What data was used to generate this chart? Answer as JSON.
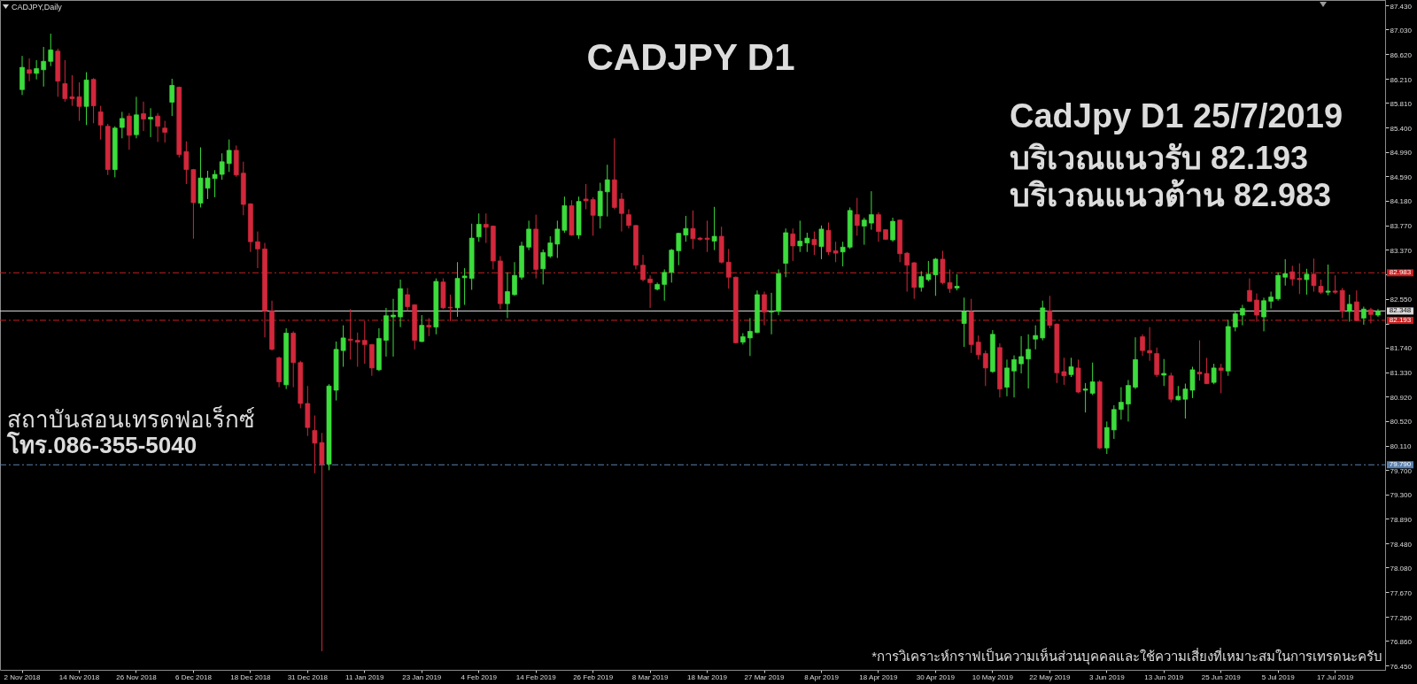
{
  "chart_data": {
    "type": "candlestick",
    "title": "CADJPY D1",
    "annotations": [
      "CADJPY,Daily",
      "CadJpy D1 25/7/2019",
      "บริเวณแนวรับ 82.193",
      "บริเวณแนวต้าน 82.983",
      "สถาบันสอนเทรดฟอเร็กซ์",
      "โทร.086-355-5040",
      "*การวิเคราะห์กราฟเป็นความเห็นส่วนบุคคลและใช้ความเสี่ยงที่เหมาะสมในการเทรดนะครับ"
    ],
    "categories": [
      "2 Nov 2018",
      null,
      null,
      null,
      null,
      null,
      null,
      null,
      "14 Nov 2018",
      null,
      null,
      null,
      null,
      null,
      null,
      null,
      "26 Nov 2018",
      null,
      null,
      null,
      null,
      null,
      null,
      null,
      "6 Dec 2018",
      null,
      null,
      null,
      null,
      null,
      null,
      null,
      "18 Dec 2018",
      null,
      null,
      null,
      null,
      null,
      null,
      null,
      "31 Dec 2018",
      null,
      null,
      null,
      null,
      null,
      null,
      null,
      "11 Jan 2019",
      null,
      null,
      null,
      null,
      null,
      null,
      null,
      "23 Jan 2019",
      null,
      null,
      null,
      null,
      null,
      null,
      null,
      "4 Feb 2019",
      null,
      null,
      null,
      null,
      null,
      null,
      null,
      "14 Feb 2019",
      null,
      null,
      null,
      null,
      null,
      null,
      null,
      "26 Feb 2019",
      null,
      null,
      null,
      null,
      null,
      null,
      null,
      "8 Mar 2019",
      null,
      null,
      null,
      null,
      null,
      null,
      null,
      "18 Mar 2019",
      null,
      null,
      null,
      null,
      null,
      null,
      null,
      "27 Mar 2019",
      null,
      null,
      null,
      null,
      null,
      null,
      null,
      "8 Apr 2019",
      null,
      null,
      null,
      null,
      null,
      null,
      null,
      "18 Apr 2019",
      null,
      null,
      null,
      null,
      null,
      null,
      null,
      "30 Apr 2019",
      null,
      null,
      null,
      null,
      null,
      null,
      null,
      "10 May 2019",
      null,
      null,
      null,
      null,
      null,
      null,
      null,
      "22 May 2019",
      null,
      null,
      null,
      null,
      null,
      null,
      null,
      "3 Jun 2019",
      null,
      null,
      null,
      null,
      null,
      null,
      null,
      "13 Jun 2019",
      null,
      null,
      null,
      null,
      null,
      null,
      null,
      "25 Jun 2019",
      null,
      null,
      null,
      null,
      null,
      null,
      null,
      "5 Jul 2019",
      null,
      null,
      null,
      null,
      null,
      null,
      null,
      "17 Jul 2019",
      null,
      null,
      null,
      null,
      null,
      null
    ],
    "ohlc": [
      [
        86.03,
        86.59,
        85.94,
        86.4
      ],
      [
        86.36,
        86.55,
        86.17,
        86.3
      ],
      [
        86.3,
        86.52,
        86.2,
        86.38
      ],
      [
        86.36,
        86.74,
        86.08,
        86.5
      ],
      [
        86.5,
        86.96,
        86.42,
        86.69
      ],
      [
        86.67,
        86.71,
        85.91,
        86.17
      ],
      [
        86.13,
        86.52,
        85.83,
        85.88
      ],
      [
        85.91,
        86.27,
        85.76,
        85.88
      ],
      [
        85.91,
        86.15,
        85.51,
        85.75
      ],
      [
        85.75,
        86.32,
        85.44,
        86.19
      ],
      [
        86.2,
        86.22,
        85.47,
        85.76
      ],
      [
        85.66,
        85.76,
        85.2,
        85.44
      ],
      [
        85.42,
        85.46,
        84.61,
        84.7
      ],
      [
        84.7,
        85.42,
        84.57,
        85.39
      ],
      [
        85.4,
        85.66,
        85.22,
        85.55
      ],
      [
        85.59,
        85.64,
        85.03,
        85.27
      ],
      [
        85.28,
        85.91,
        85.22,
        85.61
      ],
      [
        85.63,
        85.83,
        85.34,
        85.54
      ],
      [
        85.54,
        85.72,
        85.24,
        85.57
      ],
      [
        85.59,
        85.64,
        85.16,
        85.42
      ],
      [
        85.39,
        85.51,
        85.15,
        85.32
      ],
      [
        85.82,
        86.21,
        85.59,
        86.1
      ],
      [
        86.07,
        86.08,
        84.9,
        84.95
      ],
      [
        85.0,
        85.17,
        84.46,
        84.7
      ],
      [
        84.7,
        84.71,
        83.55,
        84.15
      ],
      [
        84.14,
        85.07,
        84.07,
        84.56
      ],
      [
        84.39,
        84.68,
        84.21,
        84.56
      ],
      [
        84.55,
        84.69,
        84.24,
        84.62
      ],
      [
        84.62,
        84.97,
        84.53,
        84.83
      ],
      [
        84.8,
        85.2,
        84.66,
        85.02
      ],
      [
        85.02,
        85.1,
        84.58,
        84.61
      ],
      [
        84.64,
        84.83,
        83.94,
        84.12
      ],
      [
        84.13,
        84.14,
        83.33,
        83.5
      ],
      [
        83.5,
        83.67,
        83.06,
        83.38
      ],
      [
        83.38,
        83.48,
        81.91,
        82.35
      ],
      [
        82.35,
        82.52,
        81.69,
        81.71
      ],
      [
        81.57,
        81.59,
        81.08,
        81.17
      ],
      [
        81.12,
        82.06,
        81.05,
        81.98
      ],
      [
        81.98,
        82.01,
        81.08,
        81.49
      ],
      [
        81.49,
        81.52,
        80.73,
        80.81
      ],
      [
        80.81,
        81.1,
        80.27,
        80.41
      ],
      [
        80.36,
        80.61,
        79.65,
        80.15
      ],
      [
        80.16,
        80.32,
        76.69,
        79.8
      ],
      [
        79.8,
        81.13,
        79.7,
        81.1
      ],
      [
        81.03,
        81.84,
        80.86,
        81.71
      ],
      [
        81.69,
        82.11,
        81.42,
        81.9
      ],
      [
        81.88,
        82.38,
        81.54,
        81.86
      ],
      [
        81.86,
        81.99,
        81.42,
        81.83
      ],
      [
        81.86,
        82.18,
        81.47,
        81.79
      ],
      [
        81.79,
        81.8,
        81.27,
        81.4
      ],
      [
        81.37,
        82.06,
        81.35,
        81.89
      ],
      [
        81.86,
        82.4,
        81.59,
        82.27
      ],
      [
        82.25,
        82.55,
        81.59,
        82.28
      ],
      [
        82.25,
        82.87,
        82.08,
        82.72
      ],
      [
        82.62,
        82.73,
        82.35,
        82.42
      ],
      [
        82.45,
        82.46,
        81.71,
        81.86
      ],
      [
        81.84,
        82.28,
        81.83,
        82.11
      ],
      [
        82.11,
        82.23,
        81.93,
        82.08
      ],
      [
        82.08,
        82.89,
        81.96,
        82.84
      ],
      [
        82.83,
        82.89,
        82.38,
        82.4
      ],
      [
        82.41,
        82.62,
        82.18,
        82.4
      ],
      [
        82.4,
        83.16,
        82.25,
        82.89
      ],
      [
        82.9,
        83.06,
        82.45,
        82.93
      ],
      [
        82.89,
        83.8,
        82.7,
        83.56
      ],
      [
        83.58,
        83.97,
        83.5,
        83.79
      ],
      [
        83.79,
        83.97,
        83.48,
        83.74
      ],
      [
        83.76,
        83.77,
        83.04,
        83.18
      ],
      [
        83.18,
        83.26,
        82.38,
        82.47
      ],
      [
        82.47,
        82.99,
        82.23,
        82.67
      ],
      [
        82.62,
        83.16,
        82.6,
        82.94
      ],
      [
        82.91,
        83.5,
        82.87,
        83.43
      ],
      [
        83.41,
        83.85,
        83.36,
        83.71
      ],
      [
        83.71,
        83.95,
        82.89,
        83.04
      ],
      [
        83.05,
        83.37,
        82.79,
        83.32
      ],
      [
        83.26,
        83.59,
        83.23,
        83.48
      ],
      [
        83.46,
        83.85,
        83.23,
        83.71
      ],
      [
        83.69,
        84.25,
        83.65,
        84.1
      ],
      [
        84.1,
        84.19,
        83.6,
        83.61
      ],
      [
        83.61,
        84.25,
        83.55,
        84.17
      ],
      [
        84.21,
        84.46,
        84.04,
        84.18
      ],
      [
        84.2,
        84.24,
        83.6,
        83.94
      ],
      [
        83.93,
        84.48,
        83.72,
        84.34
      ],
      [
        84.33,
        84.78,
        83.92,
        84.53
      ],
      [
        84.53,
        85.22,
        84.04,
        84.07
      ],
      [
        84.21,
        84.31,
        83.67,
        83.97
      ],
      [
        83.95,
        84.04,
        83.72,
        83.77
      ],
      [
        83.77,
        83.78,
        83.04,
        83.11
      ],
      [
        83.11,
        83.28,
        82.84,
        82.87
      ],
      [
        82.88,
        82.94,
        82.4,
        82.82
      ],
      [
        82.71,
        82.82,
        82.69,
        82.79
      ],
      [
        82.79,
        83.04,
        82.52,
        82.99
      ],
      [
        82.99,
        83.38,
        82.82,
        83.36
      ],
      [
        83.35,
        83.65,
        83.11,
        83.64
      ],
      [
        83.61,
        83.93,
        83.5,
        83.72
      ],
      [
        83.72,
        84.02,
        83.38,
        83.55
      ],
      [
        83.56,
        83.58,
        83.52,
        83.54
      ],
      [
        83.56,
        83.85,
        83.33,
        83.54
      ],
      [
        83.51,
        84.08,
        83.36,
        83.59
      ],
      [
        83.59,
        83.75,
        83.14,
        83.16
      ],
      [
        83.16,
        83.38,
        82.72,
        82.91
      ],
      [
        82.91,
        82.92,
        81.81,
        81.82
      ],
      [
        81.83,
        81.98,
        81.79,
        81.92
      ],
      [
        81.9,
        82.23,
        81.6,
        82.01
      ],
      [
        81.99,
        82.69,
        81.98,
        82.62
      ],
      [
        82.62,
        82.67,
        82.11,
        82.33
      ],
      [
        82.33,
        82.65,
        81.96,
        82.35
      ],
      [
        82.34,
        83.04,
        82.28,
        82.97
      ],
      [
        83.14,
        83.72,
        82.91,
        83.65
      ],
      [
        83.63,
        83.72,
        83.18,
        83.43
      ],
      [
        83.43,
        83.85,
        83.33,
        83.51
      ],
      [
        83.48,
        83.65,
        83.33,
        83.56
      ],
      [
        83.54,
        83.67,
        83.28,
        83.45
      ],
      [
        83.42,
        83.77,
        83.21,
        83.71
      ],
      [
        83.69,
        83.82,
        83.28,
        83.33
      ],
      [
        83.35,
        83.5,
        83.16,
        83.31
      ],
      [
        83.33,
        83.5,
        83.09,
        83.41
      ],
      [
        83.41,
        84.07,
        83.38,
        84.02
      ],
      [
        83.95,
        84.23,
        83.6,
        83.77
      ],
      [
        83.76,
        83.9,
        83.45,
        83.86
      ],
      [
        83.81,
        84.34,
        83.7,
        83.95
      ],
      [
        83.95,
        83.99,
        83.5,
        83.67
      ],
      [
        83.7,
        83.71,
        83.53,
        83.54
      ],
      [
        83.53,
        83.9,
        83.5,
        83.84
      ],
      [
        83.86,
        83.87,
        83.16,
        83.3
      ],
      [
        83.31,
        83.33,
        82.67,
        83.11
      ],
      [
        83.15,
        83.16,
        82.55,
        82.74
      ],
      [
        82.74,
        83.01,
        82.67,
        82.92
      ],
      [
        82.87,
        83.18,
        82.84,
        82.96
      ],
      [
        82.95,
        83.23,
        82.6,
        83.21
      ],
      [
        83.21,
        83.35,
        82.79,
        82.82
      ],
      [
        82.82,
        83.04,
        82.65,
        82.72
      ],
      [
        82.73,
        82.96,
        82.69,
        82.76
      ],
      [
        82.14,
        82.57,
        81.75,
        82.34
      ],
      [
        82.34,
        82.55,
        81.65,
        81.79
      ],
      [
        81.83,
        81.94,
        81.54,
        81.62
      ],
      [
        81.64,
        81.69,
        81.1,
        81.4
      ],
      [
        81.34,
        82.03,
        81.32,
        81.96
      ],
      [
        81.74,
        81.81,
        80.91,
        81.05
      ],
      [
        81.08,
        81.54,
        80.93,
        81.4
      ],
      [
        81.35,
        81.61,
        80.91,
        81.54
      ],
      [
        81.47,
        81.93,
        81.31,
        81.59
      ],
      [
        81.55,
        81.96,
        81.06,
        81.71
      ],
      [
        81.88,
        82.11,
        81.71,
        81.94
      ],
      [
        81.9,
        82.52,
        81.86,
        82.4
      ],
      [
        82.35,
        82.6,
        82.06,
        82.11
      ],
      [
        82.13,
        82.14,
        81.15,
        81.32
      ],
      [
        81.34,
        81.57,
        81.12,
        81.27
      ],
      [
        81.29,
        81.57,
        81.25,
        81.42
      ],
      [
        81.4,
        81.54,
        80.98,
        81.0
      ],
      [
        81.03,
        81.15,
        80.66,
        81.05
      ],
      [
        80.98,
        81.49,
        80.95,
        81.17
      ],
      [
        81.17,
        81.2,
        80.05,
        80.07
      ],
      [
        80.07,
        80.51,
        79.97,
        80.41
      ],
      [
        80.37,
        80.78,
        80.22,
        80.71
      ],
      [
        80.71,
        81.08,
        80.54,
        80.83
      ],
      [
        80.8,
        81.2,
        80.51,
        81.11
      ],
      [
        81.08,
        81.91,
        81.05,
        81.54
      ],
      [
        81.92,
        81.96,
        81.6,
        81.69
      ],
      [
        81.69,
        82.08,
        81.52,
        81.65
      ],
      [
        81.64,
        81.74,
        81.25,
        81.29
      ],
      [
        81.28,
        81.55,
        81.1,
        81.31
      ],
      [
        81.27,
        81.32,
        80.83,
        80.88
      ],
      [
        80.87,
        81.1,
        80.86,
        80.93
      ],
      [
        80.88,
        81.14,
        80.56,
        81.05
      ],
      [
        81.03,
        81.42,
        80.9,
        81.37
      ],
      [
        81.33,
        81.86,
        81.19,
        81.3
      ],
      [
        81.31,
        81.57,
        81.13,
        81.14
      ],
      [
        81.16,
        81.47,
        81.13,
        81.4
      ],
      [
        81.4,
        81.47,
        80.98,
        81.36
      ],
      [
        81.35,
        82.2,
        81.27,
        82.09
      ],
      [
        82.08,
        82.35,
        82.01,
        82.3
      ],
      [
        82.28,
        82.45,
        82.11,
        82.39
      ],
      [
        82.69,
        82.89,
        82.5,
        82.51
      ],
      [
        82.53,
        82.64,
        82.17,
        82.28
      ],
      [
        82.25,
        82.57,
        82.01,
        82.52
      ],
      [
        82.51,
        82.67,
        82.39,
        82.58
      ],
      [
        82.55,
        82.99,
        82.52,
        82.94
      ],
      [
        82.91,
        83.21,
        82.77,
        82.97
      ],
      [
        83.0,
        83.1,
        82.77,
        82.88
      ],
      [
        82.89,
        83.14,
        82.63,
        82.87
      ],
      [
        82.87,
        83.05,
        82.62,
        82.96
      ],
      [
        82.96,
        83.22,
        82.67,
        82.77
      ],
      [
        82.76,
        82.87,
        82.63,
        82.66
      ],
      [
        82.66,
        83.12,
        82.61,
        82.68
      ],
      [
        82.68,
        82.94,
        82.63,
        82.66
      ],
      [
        82.69,
        82.73,
        82.23,
        82.34
      ],
      [
        82.34,
        82.62,
        82.17,
        82.46
      ],
      [
        82.5,
        82.69,
        82.18,
        82.19
      ],
      [
        82.23,
        82.42,
        82.12,
        82.38
      ],
      [
        82.37,
        82.4,
        82.14,
        82.29
      ],
      [
        82.28,
        82.38,
        82.25,
        82.35
      ]
    ],
    "colors": [
      "#3cdc3c",
      "#d2283c",
      "#3cdc3c",
      "#3cdc3c",
      "#3cdc3c",
      "#d2283c",
      "#d2283c",
      "#d2283c",
      "#d2283c",
      "#3cdc3c",
      "#d2283c",
      "#d2283c",
      "#d2283c",
      "#3cdc3c",
      "#3cdc3c",
      "#d2283c",
      "#3cdc3c",
      "#d2283c",
      "#3cdc3c",
      "#d2283c",
      "#d2283c",
      "#3cdc3c",
      "#d2283c",
      "#d2283c",
      "#d2283c",
      "#3cdc3c",
      "#3cdc3c",
      "#3cdc3c",
      "#3cdc3c",
      "#3cdc3c",
      "#d2283c",
      "#d2283c",
      "#d2283c",
      "#d2283c",
      "#d2283c",
      "#d2283c",
      "#d2283c",
      "#3cdc3c",
      "#d2283c",
      "#d2283c",
      "#d2283c",
      "#d2283c",
      "#d2283c",
      "#3cdc3c",
      "#3cdc3c",
      "#3cdc3c",
      "#d2283c",
      "#d2283c",
      "#d2283c",
      "#d2283c",
      "#3cdc3c",
      "#3cdc3c",
      "#3cdc3c",
      "#3cdc3c",
      "#d2283c",
      "#d2283c",
      "#3cdc3c",
      "#d2283c",
      "#3cdc3c",
      "#d2283c",
      "#d2283c",
      "#3cdc3c",
      "#3cdc3c",
      "#3cdc3c",
      "#3cdc3c",
      "#d2283c",
      "#d2283c",
      "#d2283c",
      "#3cdc3c",
      "#3cdc3c",
      "#3cdc3c",
      "#3cdc3c",
      "#d2283c",
      "#3cdc3c",
      "#3cdc3c",
      "#3cdc3c",
      "#3cdc3c",
      "#d2283c",
      "#3cdc3c",
      "#d2283c",
      "#d2283c",
      "#3cdc3c",
      "#3cdc3c",
      "#d2283c",
      "#d2283c",
      "#d2283c",
      "#d2283c",
      "#d2283c",
      "#d2283c",
      "#3cdc3c",
      "#3cdc3c",
      "#3cdc3c",
      "#3cdc3c",
      "#3cdc3c",
      "#d2283c",
      "#d2283c",
      "#d2283c",
      "#3cdc3c",
      "#d2283c",
      "#d2283c",
      "#d2283c",
      "#3cdc3c",
      "#3cdc3c",
      "#3cdc3c",
      "#d2283c",
      "#3cdc3c",
      "#3cdc3c",
      "#3cdc3c",
      "#d2283c",
      "#3cdc3c",
      "#3cdc3c",
      "#d2283c",
      "#3cdc3c",
      "#d2283c",
      "#d2283c",
      "#3cdc3c",
      "#3cdc3c",
      "#d2283c",
      "#3cdc3c",
      "#3cdc3c",
      "#d2283c",
      "#d2283c",
      "#3cdc3c",
      "#d2283c",
      "#d2283c",
      "#d2283c",
      "#3cdc3c",
      "#3cdc3c",
      "#3cdc3c",
      "#d2283c",
      "#d2283c",
      "#3cdc3c",
      "#3cdc3c",
      "#d2283c",
      "#d2283c",
      "#d2283c",
      "#3cdc3c",
      "#d2283c",
      "#3cdc3c",
      "#3cdc3c",
      "#3cdc3c",
      "#3cdc3c",
      "#3cdc3c",
      "#3cdc3c",
      "#d2283c",
      "#d2283c",
      "#d2283c",
      "#3cdc3c",
      "#d2283c",
      "#3cdc3c",
      "#3cdc3c",
      "#d2283c",
      "#3cdc3c",
      "#3cdc3c",
      "#3cdc3c",
      "#3cdc3c",
      "#3cdc3c",
      "#d2283c",
      "#d2283c",
      "#d2283c",
      "#3cdc3c",
      "#d2283c",
      "#3cdc3c",
      "#3cdc3c",
      "#3cdc3c",
      "#d2283c",
      "#d2283c",
      "#3cdc3c",
      "#d2283c",
      "#3cdc3c",
      "#3cdc3c",
      "#3cdc3c",
      "#d2283c",
      "#d2283c",
      "#3cdc3c",
      "#3cdc3c",
      "#3cdc3c",
      "#3cdc3c",
      "#d2283c",
      "#d2283c",
      "#3cdc3c",
      "#d2283c",
      "#d2283c",
      "#3cdc3c",
      "#d2283c",
      "#d2283c",
      "#3cdc3c",
      "#d2283c",
      "#3cdc3c",
      "#d2283c",
      "#3cdc3c"
    ],
    "ylim": [
      76.38,
      87.52
    ],
    "yticks": [
      {
        "value": 87.43,
        "label": "87.430"
      },
      {
        "value": 87.03,
        "label": "87.030"
      },
      {
        "value": 86.62,
        "label": "86.620"
      },
      {
        "value": 86.21,
        "label": "86.210"
      },
      {
        "value": 85.81,
        "label": "85.810"
      },
      {
        "value": 85.4,
        "label": "85.400"
      },
      {
        "value": 84.99,
        "label": "84.990"
      },
      {
        "value": 84.59,
        "label": "84.590"
      },
      {
        "value": 84.18,
        "label": "84.180"
      },
      {
        "value": 83.77,
        "label": "83.770"
      },
      {
        "value": 83.37,
        "label": "83.370"
      },
      {
        "value": 82.96,
        "label": null
      },
      {
        "value": 82.55,
        "label": "82.550"
      },
      {
        "value": 82.14,
        "label": null
      },
      {
        "value": 81.74,
        "label": "81.740"
      },
      {
        "value": 81.33,
        "label": "81.330"
      },
      {
        "value": 80.92,
        "label": "80.920"
      },
      {
        "value": 80.52,
        "label": "80.520"
      },
      {
        "value": 80.11,
        "label": "80.110"
      },
      {
        "value": 79.7,
        "label": "79.700"
      },
      {
        "value": 79.3,
        "label": "79.300"
      },
      {
        "value": 78.89,
        "label": "78.890"
      },
      {
        "value": 78.48,
        "label": "78.480"
      },
      {
        "value": 78.08,
        "label": "78.080"
      },
      {
        "value": 77.67,
        "label": "77.670"
      },
      {
        "value": 77.26,
        "label": "77.260"
      },
      {
        "value": 76.86,
        "label": "76.860"
      },
      {
        "value": 76.45,
        "label": "76.450"
      }
    ],
    "ref_lines": [
      {
        "axis": "y",
        "value": 82.983,
        "label": "82.983",
        "color": "#c42020",
        "line_style": "dashed"
      },
      {
        "axis": "y",
        "value": 82.348,
        "label": "82.348",
        "color": "#d8d8d8",
        "line_style": "solid"
      },
      {
        "axis": "y",
        "value": 82.193,
        "label": "82.193",
        "color": "#c42020",
        "line_style": "dashed"
      },
      {
        "axis": "y",
        "value": 79.79,
        "label": "79.790",
        "color": "#5b80ad",
        "line_style": "dashed"
      }
    ]
  }
}
